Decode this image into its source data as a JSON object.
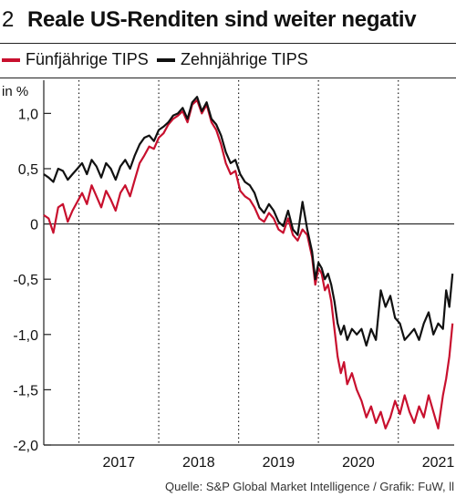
{
  "header": {
    "number": "2",
    "title": "Reale US-Renditen sind weiter negativ"
  },
  "unit_label": "in %",
  "source": "Quelle: S&P Global Market Intelligence / Grafik: FuW, ll",
  "colors": {
    "five_year": "#c8102e",
    "ten_year": "#111111"
  },
  "chart_data": {
    "type": "line",
    "title": "Reale US-Renditen sind weiter negativ",
    "ylabel": "in %",
    "ylim": [
      -2.0,
      1.3
    ],
    "xlim": [
      2016.56,
      2021.7
    ],
    "y_ticks": [
      1.0,
      0.5,
      0,
      -0.5,
      -1.0,
      -1.5,
      -2.0
    ],
    "y_tick_labels": [
      "1,0",
      "0,5",
      "0",
      "-0,5",
      "-1,0",
      "-1,5",
      "-2,0"
    ],
    "x_tick_labels": [
      "2017",
      "2018",
      "2019",
      "2020",
      "2021"
    ],
    "x_tick_positions": [
      2017.0,
      2018.0,
      2019.0,
      2020.0,
      2021.0
    ],
    "legend": "top-left",
    "series": [
      {
        "name": "Fünfjährige TIPS",
        "color": "#c8102e",
        "points": [
          [
            2016.56,
            0.08
          ],
          [
            2016.62,
            0.05
          ],
          [
            2016.68,
            -0.08
          ],
          [
            2016.74,
            0.15
          ],
          [
            2016.8,
            0.18
          ],
          [
            2016.86,
            0.02
          ],
          [
            2016.92,
            0.12
          ],
          [
            2016.98,
            0.2
          ],
          [
            2017.04,
            0.28
          ],
          [
            2017.1,
            0.18
          ],
          [
            2017.16,
            0.35
          ],
          [
            2017.22,
            0.25
          ],
          [
            2017.28,
            0.15
          ],
          [
            2017.34,
            0.3
          ],
          [
            2017.4,
            0.22
          ],
          [
            2017.46,
            0.12
          ],
          [
            2017.52,
            0.28
          ],
          [
            2017.58,
            0.35
          ],
          [
            2017.64,
            0.25
          ],
          [
            2017.7,
            0.4
          ],
          [
            2017.76,
            0.55
          ],
          [
            2017.82,
            0.62
          ],
          [
            2017.88,
            0.7
          ],
          [
            2017.94,
            0.68
          ],
          [
            2018.0,
            0.78
          ],
          [
            2018.06,
            0.82
          ],
          [
            2018.12,
            0.9
          ],
          [
            2018.18,
            0.95
          ],
          [
            2018.24,
            0.98
          ],
          [
            2018.3,
            1.02
          ],
          [
            2018.36,
            0.92
          ],
          [
            2018.42,
            1.08
          ],
          [
            2018.48,
            1.12
          ],
          [
            2018.54,
            1.0
          ],
          [
            2018.6,
            1.08
          ],
          [
            2018.66,
            0.92
          ],
          [
            2018.72,
            0.85
          ],
          [
            2018.78,
            0.72
          ],
          [
            2018.84,
            0.55
          ],
          [
            2018.9,
            0.45
          ],
          [
            2018.96,
            0.48
          ],
          [
            2019.02,
            0.3
          ],
          [
            2019.08,
            0.25
          ],
          [
            2019.14,
            0.22
          ],
          [
            2019.2,
            0.15
          ],
          [
            2019.26,
            0.05
          ],
          [
            2019.32,
            0.02
          ],
          [
            2019.38,
            0.1
          ],
          [
            2019.44,
            0.05
          ],
          [
            2019.5,
            -0.05
          ],
          [
            2019.56,
            -0.08
          ],
          [
            2019.62,
            0.05
          ],
          [
            2019.68,
            -0.1
          ],
          [
            2019.74,
            -0.15
          ],
          [
            2019.8,
            -0.05
          ],
          [
            2019.86,
            -0.1
          ],
          [
            2019.92,
            -0.3
          ],
          [
            2019.96,
            -0.55
          ],
          [
            2020.0,
            -0.4
          ],
          [
            2020.04,
            -0.45
          ],
          [
            2020.08,
            -0.6
          ],
          [
            2020.12,
            -0.55
          ],
          [
            2020.16,
            -0.7
          ],
          [
            2020.2,
            -0.95
          ],
          [
            2020.24,
            -1.2
          ],
          [
            2020.28,
            -1.35
          ],
          [
            2020.32,
            -1.25
          ],
          [
            2020.36,
            -1.45
          ],
          [
            2020.42,
            -1.35
          ],
          [
            2020.48,
            -1.5
          ],
          [
            2020.54,
            -1.6
          ],
          [
            2020.6,
            -1.75
          ],
          [
            2020.66,
            -1.65
          ],
          [
            2020.72,
            -1.8
          ],
          [
            2020.78,
            -1.7
          ],
          [
            2020.84,
            -1.85
          ],
          [
            2020.9,
            -1.75
          ],
          [
            2020.96,
            -1.6
          ],
          [
            2021.02,
            -1.72
          ],
          [
            2021.08,
            -1.55
          ],
          [
            2021.14,
            -1.7
          ],
          [
            2021.2,
            -1.8
          ],
          [
            2021.26,
            -1.65
          ],
          [
            2021.32,
            -1.75
          ],
          [
            2021.38,
            -1.55
          ],
          [
            2021.44,
            -1.7
          ],
          [
            2021.5,
            -1.85
          ],
          [
            2021.56,
            -1.55
          ],
          [
            2021.6,
            -1.4
          ],
          [
            2021.64,
            -1.2
          ],
          [
            2021.68,
            -0.9
          ]
        ]
      },
      {
        "name": "Zehnjährige TIPS",
        "color": "#111111",
        "points": [
          [
            2016.56,
            0.45
          ],
          [
            2016.62,
            0.42
          ],
          [
            2016.68,
            0.38
          ],
          [
            2016.74,
            0.5
          ],
          [
            2016.8,
            0.48
          ],
          [
            2016.86,
            0.4
          ],
          [
            2016.92,
            0.45
          ],
          [
            2016.98,
            0.5
          ],
          [
            2017.04,
            0.55
          ],
          [
            2017.1,
            0.45
          ],
          [
            2017.16,
            0.58
          ],
          [
            2017.22,
            0.52
          ],
          [
            2017.28,
            0.42
          ],
          [
            2017.34,
            0.55
          ],
          [
            2017.4,
            0.5
          ],
          [
            2017.46,
            0.4
          ],
          [
            2017.52,
            0.52
          ],
          [
            2017.58,
            0.58
          ],
          [
            2017.64,
            0.5
          ],
          [
            2017.7,
            0.62
          ],
          [
            2017.76,
            0.72
          ],
          [
            2017.82,
            0.78
          ],
          [
            2017.88,
            0.8
          ],
          [
            2017.94,
            0.75
          ],
          [
            2018.0,
            0.85
          ],
          [
            2018.06,
            0.88
          ],
          [
            2018.12,
            0.92
          ],
          [
            2018.18,
            0.98
          ],
          [
            2018.24,
            1.0
          ],
          [
            2018.3,
            1.05
          ],
          [
            2018.36,
            0.95
          ],
          [
            2018.42,
            1.1
          ],
          [
            2018.48,
            1.15
          ],
          [
            2018.54,
            1.02
          ],
          [
            2018.6,
            1.1
          ],
          [
            2018.66,
            0.95
          ],
          [
            2018.72,
            0.9
          ],
          [
            2018.78,
            0.8
          ],
          [
            2018.84,
            0.65
          ],
          [
            2018.9,
            0.55
          ],
          [
            2018.96,
            0.58
          ],
          [
            2019.02,
            0.45
          ],
          [
            2019.08,
            0.38
          ],
          [
            2019.14,
            0.35
          ],
          [
            2019.2,
            0.28
          ],
          [
            2019.26,
            0.15
          ],
          [
            2019.32,
            0.1
          ],
          [
            2019.38,
            0.18
          ],
          [
            2019.44,
            0.12
          ],
          [
            2019.5,
            0.02
          ],
          [
            2019.56,
            -0.02
          ],
          [
            2019.62,
            0.12
          ],
          [
            2019.68,
            -0.05
          ],
          [
            2019.74,
            -0.1
          ],
          [
            2019.8,
            0.2
          ],
          [
            2019.86,
            -0.05
          ],
          [
            2019.92,
            -0.25
          ],
          [
            2019.96,
            -0.5
          ],
          [
            2020.0,
            -0.35
          ],
          [
            2020.04,
            -0.4
          ],
          [
            2020.08,
            -0.5
          ],
          [
            2020.12,
            -0.45
          ],
          [
            2020.16,
            -0.55
          ],
          [
            2020.2,
            -0.7
          ],
          [
            2020.24,
            -0.9
          ],
          [
            2020.28,
            -1.0
          ],
          [
            2020.32,
            -0.92
          ],
          [
            2020.36,
            -1.05
          ],
          [
            2020.42,
            -0.95
          ],
          [
            2020.48,
            -1.0
          ],
          [
            2020.54,
            -0.95
          ],
          [
            2020.6,
            -1.1
          ],
          [
            2020.66,
            -0.95
          ],
          [
            2020.72,
            -1.05
          ],
          [
            2020.78,
            -0.6
          ],
          [
            2020.84,
            -0.75
          ],
          [
            2020.9,
            -0.65
          ],
          [
            2020.96,
            -0.85
          ],
          [
            2021.02,
            -0.9
          ],
          [
            2021.08,
            -1.05
          ],
          [
            2021.14,
            -1.0
          ],
          [
            2021.2,
            -0.95
          ],
          [
            2021.26,
            -1.05
          ],
          [
            2021.32,
            -0.9
          ],
          [
            2021.38,
            -0.8
          ],
          [
            2021.44,
            -1.0
          ],
          [
            2021.5,
            -0.9
          ],
          [
            2021.56,
            -0.95
          ],
          [
            2021.6,
            -0.6
          ],
          [
            2021.64,
            -0.75
          ],
          [
            2021.68,
            -0.45
          ]
        ]
      }
    ]
  }
}
